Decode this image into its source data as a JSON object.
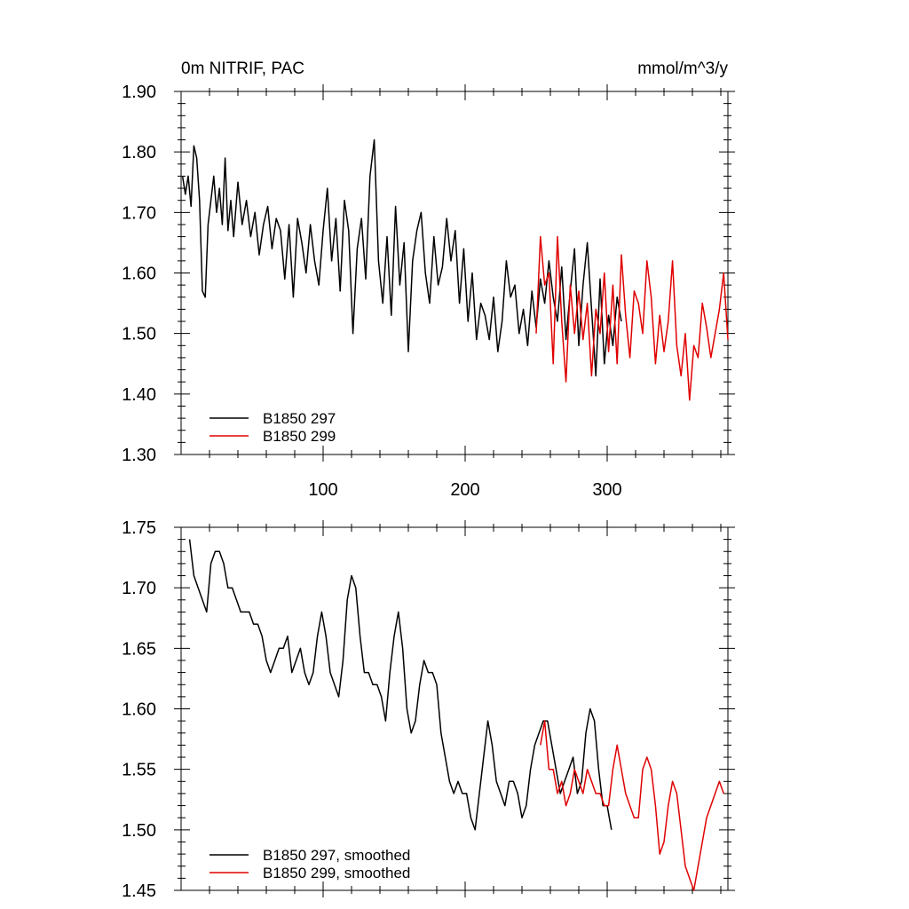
{
  "colors": {
    "series_0": "#000000",
    "series_1": "#e00000"
  },
  "chart_data": [
    {
      "type": "line",
      "title_left": "0m NITRIF, PAC",
      "title_right": "mmol/m^3/y",
      "xlim": [
        0,
        385
      ],
      "ylim": [
        1.3,
        1.9
      ],
      "xticks": [
        100,
        200,
        300
      ],
      "xtick_labels": [
        "100",
        "200",
        "300"
      ],
      "yticks": [
        1.3,
        1.4,
        1.5,
        1.6,
        1.7,
        1.8,
        1.9
      ],
      "ytick_labels": [
        "1.30",
        "1.40",
        "1.50",
        "1.60",
        "1.70",
        "1.80",
        "1.90"
      ],
      "legend_position": "bottom-left",
      "series": [
        {
          "name": "B1850 297",
          "color": "#000000",
          "x": [
            1,
            3,
            5,
            7,
            9,
            11,
            13,
            15,
            17,
            19,
            21,
            23,
            25,
            27,
            29,
            31,
            33,
            35,
            37,
            40,
            43,
            46,
            49,
            52,
            55,
            58,
            61,
            64,
            67,
            70,
            73,
            76,
            79,
            82,
            85,
            88,
            91,
            94,
            97,
            100,
            103,
            106,
            109,
            112,
            115,
            118,
            121,
            124,
            127,
            130,
            133,
            136,
            139,
            142,
            145,
            148,
            151,
            154,
            157,
            160,
            163,
            166,
            169,
            172,
            175,
            178,
            181,
            184,
            187,
            190,
            193,
            196,
            199,
            202,
            205,
            208,
            211,
            214,
            217,
            220,
            223,
            226,
            229,
            232,
            235,
            238,
            241,
            244,
            247,
            250,
            253,
            256,
            259,
            262,
            265,
            268,
            271,
            274,
            277,
            280,
            283,
            286,
            289,
            292,
            295,
            298,
            301,
            304,
            307,
            310
          ],
          "values": [
            1.76,
            1.73,
            1.76,
            1.71,
            1.81,
            1.79,
            1.72,
            1.57,
            1.56,
            1.68,
            1.72,
            1.76,
            1.7,
            1.74,
            1.68,
            1.79,
            1.67,
            1.72,
            1.66,
            1.75,
            1.68,
            1.72,
            1.66,
            1.7,
            1.63,
            1.68,
            1.71,
            1.64,
            1.69,
            1.67,
            1.59,
            1.68,
            1.56,
            1.69,
            1.65,
            1.6,
            1.68,
            1.62,
            1.58,
            1.67,
            1.74,
            1.62,
            1.69,
            1.57,
            1.72,
            1.67,
            1.5,
            1.64,
            1.69,
            1.59,
            1.76,
            1.82,
            1.62,
            1.55,
            1.66,
            1.53,
            1.71,
            1.58,
            1.65,
            1.47,
            1.62,
            1.67,
            1.7,
            1.6,
            1.55,
            1.66,
            1.58,
            1.61,
            1.69,
            1.62,
            1.67,
            1.55,
            1.64,
            1.52,
            1.6,
            1.49,
            1.55,
            1.53,
            1.49,
            1.56,
            1.47,
            1.52,
            1.62,
            1.56,
            1.58,
            1.5,
            1.54,
            1.48,
            1.57,
            1.51,
            1.59,
            1.55,
            1.62,
            1.56,
            1.52,
            1.61,
            1.49,
            1.57,
            1.64,
            1.48,
            1.58,
            1.65,
            1.54,
            1.43,
            1.59,
            1.45,
            1.53,
            1.48,
            1.56,
            1.52
          ]
        },
        {
          "name": "B1850 299",
          "color": "#e00000",
          "x": [
            250,
            253,
            256,
            259,
            262,
            265,
            268,
            271,
            274,
            277,
            280,
            283,
            286,
            289,
            292,
            295,
            298,
            301,
            304,
            307,
            310,
            313,
            316,
            319,
            322,
            325,
            328,
            331,
            334,
            337,
            340,
            343,
            346,
            349,
            352,
            355,
            358,
            361,
            364,
            367,
            370,
            373,
            376,
            379,
            382,
            385
          ],
          "values": [
            1.5,
            1.66,
            1.58,
            1.6,
            1.45,
            1.66,
            1.52,
            1.42,
            1.58,
            1.5,
            1.57,
            1.49,
            1.55,
            1.43,
            1.54,
            1.5,
            1.6,
            1.47,
            1.58,
            1.45,
            1.63,
            1.53,
            1.46,
            1.57,
            1.55,
            1.5,
            1.62,
            1.56,
            1.45,
            1.53,
            1.47,
            1.52,
            1.62,
            1.48,
            1.43,
            1.5,
            1.39,
            1.48,
            1.46,
            1.55,
            1.51,
            1.46,
            1.5,
            1.54,
            1.6,
            1.49
          ]
        }
      ]
    },
    {
      "type": "line",
      "xlim": [
        0,
        385
      ],
      "ylim": [
        1.45,
        1.75
      ],
      "yticks": [
        1.45,
        1.5,
        1.55,
        1.6,
        1.65,
        1.7,
        1.75
      ],
      "ytick_labels": [
        "1.45",
        "1.50",
        "1.55",
        "1.60",
        "1.65",
        "1.70",
        "1.75"
      ],
      "legend_position": "bottom-left",
      "series": [
        {
          "name": "B1850 297, smoothed",
          "color": "#000000",
          "x": [
            6,
            9,
            12,
            15,
            18,
            21,
            24,
            27,
            30,
            33,
            36,
            39,
            42,
            45,
            48,
            51,
            54,
            57,
            60,
            63,
            66,
            69,
            72,
            75,
            78,
            81,
            84,
            87,
            90,
            93,
            96,
            99,
            102,
            105,
            108,
            111,
            114,
            117,
            120,
            123,
            126,
            129,
            132,
            135,
            138,
            141,
            144,
            147,
            150,
            153,
            156,
            159,
            162,
            165,
            168,
            171,
            174,
            177,
            180,
            183,
            186,
            189,
            192,
            195,
            198,
            201,
            204,
            207,
            210,
            213,
            216,
            219,
            222,
            225,
            228,
            231,
            234,
            237,
            240,
            243,
            246,
            249,
            252,
            255,
            258,
            261,
            264,
            267,
            270,
            273,
            276,
            279,
            282,
            285,
            288,
            291,
            294,
            297,
            300,
            303
          ],
          "values": [
            1.74,
            1.71,
            1.7,
            1.69,
            1.68,
            1.72,
            1.73,
            1.73,
            1.72,
            1.7,
            1.7,
            1.69,
            1.68,
            1.68,
            1.68,
            1.67,
            1.67,
            1.66,
            1.64,
            1.63,
            1.64,
            1.65,
            1.65,
            1.66,
            1.63,
            1.64,
            1.65,
            1.63,
            1.62,
            1.63,
            1.66,
            1.68,
            1.66,
            1.63,
            1.62,
            1.61,
            1.64,
            1.69,
            1.71,
            1.7,
            1.66,
            1.63,
            1.63,
            1.62,
            1.62,
            1.61,
            1.59,
            1.63,
            1.66,
            1.68,
            1.65,
            1.6,
            1.58,
            1.59,
            1.62,
            1.64,
            1.63,
            1.63,
            1.62,
            1.58,
            1.56,
            1.54,
            1.53,
            1.54,
            1.53,
            1.53,
            1.51,
            1.5,
            1.53,
            1.56,
            1.59,
            1.57,
            1.54,
            1.53,
            1.52,
            1.54,
            1.54,
            1.53,
            1.51,
            1.52,
            1.55,
            1.57,
            1.58,
            1.59,
            1.59,
            1.57,
            1.55,
            1.53,
            1.54,
            1.55,
            1.56,
            1.53,
            1.54,
            1.58,
            1.6,
            1.59,
            1.55,
            1.52,
            1.52,
            1.5
          ]
        },
        {
          "name": "B1850 299, smoothed",
          "color": "#e00000",
          "x": [
            253,
            256,
            259,
            262,
            265,
            268,
            271,
            274,
            277,
            280,
            283,
            286,
            289,
            292,
            295,
            298,
            301,
            304,
            307,
            310,
            313,
            316,
            319,
            322,
            325,
            328,
            331,
            334,
            337,
            340,
            343,
            346,
            349,
            352,
            355,
            358,
            361,
            364,
            367,
            370,
            373,
            376,
            379,
            382
          ],
          "values": [
            1.57,
            1.59,
            1.55,
            1.55,
            1.53,
            1.54,
            1.52,
            1.53,
            1.55,
            1.54,
            1.53,
            1.55,
            1.54,
            1.53,
            1.53,
            1.52,
            1.52,
            1.55,
            1.57,
            1.55,
            1.53,
            1.52,
            1.51,
            1.51,
            1.55,
            1.56,
            1.55,
            1.52,
            1.48,
            1.49,
            1.52,
            1.54,
            1.53,
            1.5,
            1.47,
            1.46,
            1.45,
            1.47,
            1.49,
            1.51,
            1.52,
            1.53,
            1.54,
            1.53
          ]
        }
      ]
    }
  ]
}
